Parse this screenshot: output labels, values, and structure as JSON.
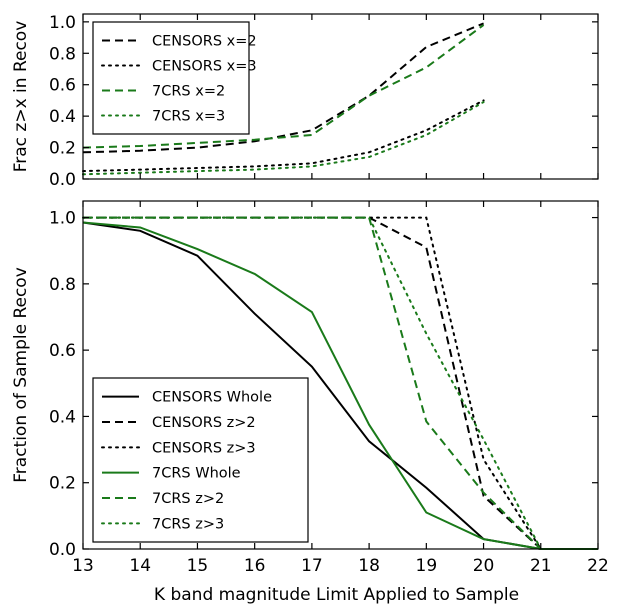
{
  "chart_data": [
    {
      "type": "line",
      "panel": "top",
      "ylabel": "Frac z>x in Recov",
      "xlabel": "",
      "xlim": [
        13,
        22
      ],
      "ylim": [
        0,
        1.05
      ],
      "yticks": [
        "0.0",
        "0.2",
        "0.4",
        "0.6",
        "0.8",
        "1.0"
      ],
      "grid": false,
      "legend_position": "upper-left",
      "series": [
        {
          "name": "CENSORS x=2",
          "color": "#000000",
          "style": "dashed",
          "x": [
            13,
            14,
            15,
            16,
            17,
            18,
            19,
            20
          ],
          "y": [
            0.17,
            0.18,
            0.2,
            0.24,
            0.31,
            0.53,
            0.84,
            0.99
          ]
        },
        {
          "name": "CENSORS x=3",
          "color": "#000000",
          "style": "dotted",
          "x": [
            13,
            14,
            15,
            16,
            17,
            18,
            19,
            20
          ],
          "y": [
            0.05,
            0.06,
            0.07,
            0.08,
            0.1,
            0.17,
            0.31,
            0.5
          ]
        },
        {
          "name": "7CRS x=2",
          "color": "#1a7a1a",
          "style": "dashed",
          "x": [
            13,
            14,
            15,
            16,
            17,
            18,
            19,
            20
          ],
          "y": [
            0.2,
            0.21,
            0.23,
            0.25,
            0.28,
            0.53,
            0.71,
            0.98
          ]
        },
        {
          "name": "7CRS x=3",
          "color": "#1a7a1a",
          "style": "dotted",
          "x": [
            13,
            14,
            15,
            16,
            17,
            18,
            19,
            20
          ],
          "y": [
            0.03,
            0.04,
            0.05,
            0.06,
            0.08,
            0.14,
            0.28,
            0.49
          ]
        }
      ]
    },
    {
      "type": "line",
      "panel": "bottom",
      "ylabel": "Fraction of Sample Recov",
      "xlabel": "K band magnitude Limit Applied to Sample",
      "xlim": [
        13,
        22
      ],
      "ylim": [
        0,
        1.05
      ],
      "xticks": [
        "13",
        "14",
        "15",
        "16",
        "17",
        "18",
        "19",
        "20",
        "21",
        "22"
      ],
      "yticks": [
        "0.0",
        "0.2",
        "0.4",
        "0.6",
        "0.8",
        "1.0"
      ],
      "grid": false,
      "legend_position": "lower-left",
      "series": [
        {
          "name": "CENSORS Whole",
          "color": "#000000",
          "style": "solid",
          "x": [
            13,
            14,
            15,
            16,
            17,
            18,
            19,
            20,
            21,
            22
          ],
          "y": [
            0.985,
            0.96,
            0.885,
            0.71,
            0.55,
            0.325,
            0.185,
            0.03,
            0.0,
            0.0
          ]
        },
        {
          "name": "CENSORS z>2",
          "color": "#000000",
          "style": "dashed",
          "x": [
            13,
            14,
            15,
            16,
            17,
            18,
            19,
            20,
            21
          ],
          "y": [
            1.0,
            1.0,
            1.0,
            1.0,
            1.0,
            1.0,
            0.91,
            0.16,
            0.0
          ]
        },
        {
          "name": "CENSORS z>3",
          "color": "#000000",
          "style": "dotted",
          "x": [
            13,
            14,
            15,
            16,
            17,
            18,
            19,
            20,
            21
          ],
          "y": [
            1.0,
            1.0,
            1.0,
            1.0,
            1.0,
            1.0,
            1.0,
            0.27,
            0.0
          ]
        },
        {
          "name": "7CRS Whole",
          "color": "#1a7a1a",
          "style": "solid",
          "x": [
            13,
            14,
            15,
            16,
            17,
            18,
            19,
            20,
            21,
            22
          ],
          "y": [
            0.985,
            0.97,
            0.905,
            0.83,
            0.715,
            0.375,
            0.11,
            0.03,
            0.0,
            0.0
          ]
        },
        {
          "name": "7CRS z>2",
          "color": "#1a7a1a",
          "style": "dashed",
          "x": [
            13,
            14,
            15,
            16,
            17,
            18,
            19,
            20,
            21
          ],
          "y": [
            1.0,
            1.0,
            1.0,
            1.0,
            1.0,
            1.0,
            0.385,
            0.17,
            0.0
          ]
        },
        {
          "name": "7CRS z>3",
          "color": "#1a7a1a",
          "style": "dotted",
          "x": [
            13,
            14,
            15,
            16,
            17,
            18,
            19,
            20,
            21
          ],
          "y": [
            1.0,
            1.0,
            1.0,
            1.0,
            1.0,
            1.0,
            0.65,
            0.33,
            0.0
          ]
        }
      ]
    }
  ]
}
